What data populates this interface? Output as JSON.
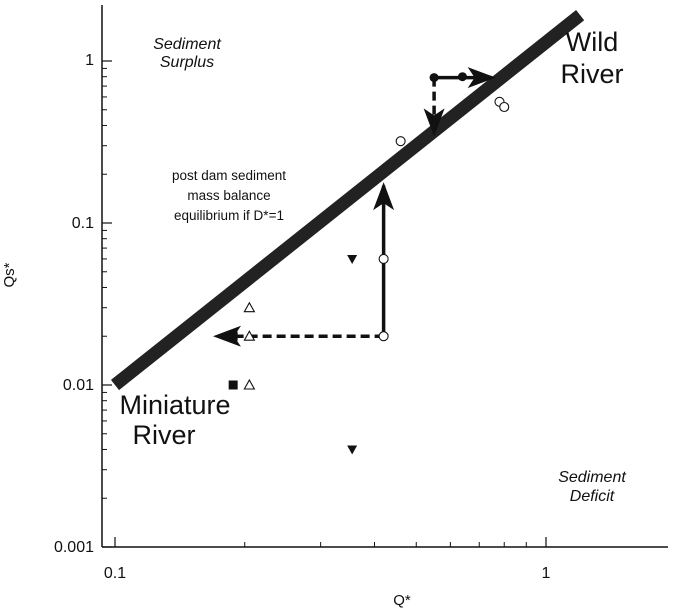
{
  "chart_data": {
    "type": "scatter",
    "title": "",
    "xlabel": "Q*",
    "ylabel": "Qs*",
    "xscale": "log",
    "yscale": "log",
    "xlim": [
      0.1,
      2.9
    ],
    "ylim": [
      0.001,
      1.95
    ],
    "grid": false,
    "x_tick_labels": [
      {
        "value": 0.1,
        "label": "0.1"
      },
      {
        "value": 1,
        "label": "1"
      }
    ],
    "y_tick_labels": [
      {
        "value": 0.001,
        "label": "0.001"
      },
      {
        "value": 0.01,
        "label": "0.01"
      },
      {
        "value": 0.1,
        "label": "0.1"
      },
      {
        "value": 1,
        "label": "1"
      }
    ],
    "equilibrium_line": {
      "from": [
        0.1,
        0.01
      ],
      "to": [
        1.2,
        1.92
      ],
      "color": "#222222"
    },
    "series": [
      {
        "marker": "open-circle",
        "points": [
          [
            0.46,
            0.32
          ],
          [
            0.78,
            0.56
          ],
          [
            0.8,
            0.52
          ],
          [
            0.42,
            0.06
          ],
          [
            0.42,
            0.02
          ]
        ]
      },
      {
        "marker": "filled-circle",
        "points": [
          [
            0.55,
            0.79
          ],
          [
            0.64,
            0.8
          ]
        ]
      },
      {
        "marker": "open-triangle",
        "points": [
          [
            0.205,
            0.03
          ],
          [
            0.205,
            0.02
          ],
          [
            0.205,
            0.01
          ]
        ]
      },
      {
        "marker": "filled-square",
        "points": [
          [
            0.188,
            0.02
          ],
          [
            0.188,
            0.01
          ]
        ]
      },
      {
        "marker": "filled-triangle-down",
        "points": [
          [
            0.355,
            0.06
          ],
          [
            0.355,
            0.004
          ]
        ]
      }
    ],
    "arrows": [
      {
        "from": [
          0.42,
          0.02
        ],
        "to": [
          0.42,
          0.17
        ],
        "style": "solid"
      },
      {
        "from": [
          0.42,
          0.02
        ],
        "to": [
          0.172,
          0.02
        ],
        "style": "dashed"
      },
      {
        "from": [
          0.55,
          0.79
        ],
        "to": [
          0.75,
          0.79
        ],
        "style": "solid"
      },
      {
        "from": [
          0.55,
          0.79
        ],
        "to": [
          0.55,
          0.36
        ],
        "style": "dashed"
      }
    ],
    "annotations": {
      "surplus": [
        "Sediment",
        "Surplus"
      ],
      "deficit": [
        "Sediment",
        "Deficit"
      ],
      "wild": [
        "Wild",
        "River"
      ],
      "miniature": [
        "Miniature",
        "River"
      ],
      "note": [
        "post dam sediment",
        "mass balance",
        "equilibrium if D*=1"
      ]
    }
  }
}
